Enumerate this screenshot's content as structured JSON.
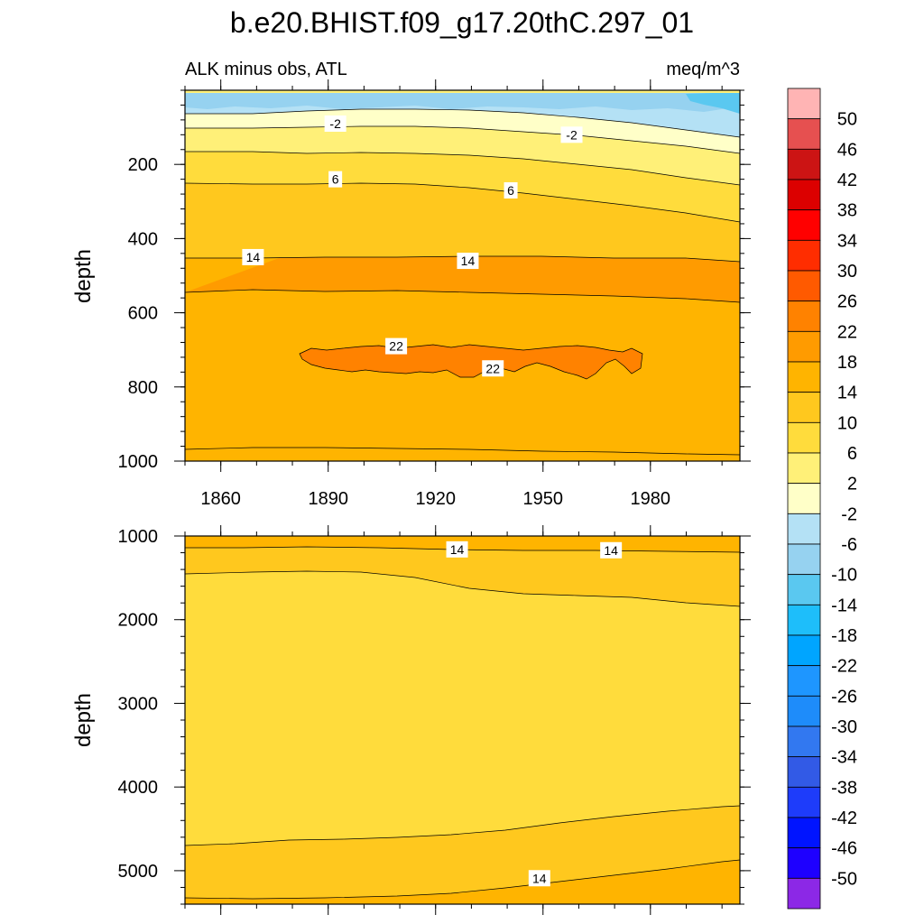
{
  "title": "b.e20.BHIST.f09_g17.20thC.297_01",
  "chart_data": {
    "type": "contour",
    "variable": "ALK minus obs, ATL",
    "units": "meq/m^3",
    "x_tick_labels": [
      "1860",
      "1890",
      "1920",
      "1950",
      "1980"
    ],
    "x_ticks": [
      1860,
      1890,
      1920,
      1950,
      1980
    ],
    "xlim": [
      1850,
      2005
    ],
    "colorbar": {
      "levels": [
        50,
        46,
        42,
        38,
        34,
        30,
        26,
        22,
        18,
        14,
        10,
        6,
        2,
        -2,
        -6,
        -10,
        -14,
        -18,
        -22,
        -26,
        -30,
        -34,
        -38,
        -42,
        -46,
        -50
      ],
      "level_labels": [
        "50",
        "46",
        "42",
        "38",
        "34",
        "30",
        "26",
        "22",
        "18",
        "14",
        "10",
        "6",
        "2",
        "-2",
        "-6",
        "-10",
        "-14",
        "-18",
        "-22",
        "-26",
        "-30",
        "-34",
        "-38",
        "-42",
        "-46",
        "-50"
      ],
      "colors": [
        "#FFB4B4",
        "#E65050",
        "#CC1414",
        "#DC0000",
        "#FF0000",
        "#FF2D00",
        "#FF5A00",
        "#FF8200",
        "#FF9B00",
        "#FFB400",
        "#FFC81E",
        "#FFDC3C",
        "#FFF078",
        "#FFFFC8",
        "#B4E1F5",
        "#96D2F0",
        "#5AC8F0",
        "#1EBEFA",
        "#00A5FF",
        "#1E96FF",
        "#1E8CFA",
        "#3278F0",
        "#325AE6",
        "#1E3CFA",
        "#0014FF",
        "#1E00FF",
        "#8C28E6"
      ]
    },
    "panels": [
      {
        "name": "upper",
        "ylabel": "depth",
        "ylim": [
          0,
          1000
        ],
        "y_ticks": [
          200,
          400,
          600,
          800,
          1000
        ],
        "y_tick_labels": [
          "200",
          "400",
          "600",
          "800",
          "1000"
        ],
        "bands": [
          {
            "range": "-6 to -2",
            "depth_top": 0,
            "depth_bottom": 90
          },
          {
            "range": "-2 to 2",
            "depth_top": 90,
            "depth_bottom": 160
          },
          {
            "range": "2 to 6",
            "depth_top": 160,
            "depth_bottom": 240
          },
          {
            "range": "6 to 10",
            "depth_top": 240,
            "depth_bottom": 330
          },
          {
            "range": "10 to 14",
            "depth_top": 330,
            "depth_bottom": 450
          },
          {
            "range": "14 to 18",
            "depth_top": 450,
            "depth_bottom": 540
          },
          {
            "range": "18 to 22",
            "depth_top": 540,
            "depth_bottom": 1000
          },
          {
            "range": "22 to 26",
            "depth_top": 680,
            "depth_bottom": 760
          }
        ],
        "contour_labels": [
          {
            "text": "-2",
            "year": 1892,
            "depth": 90
          },
          {
            "text": "-2",
            "year": 1958,
            "depth": 120
          },
          {
            "text": "6",
            "year": 1892,
            "depth": 240
          },
          {
            "text": "6",
            "year": 1941,
            "depth": 270
          },
          {
            "text": "14",
            "year": 1869,
            "depth": 450
          },
          {
            "text": "14",
            "year": 1929,
            "depth": 460
          },
          {
            "text": "22",
            "year": 1909,
            "depth": 690
          },
          {
            "text": "22",
            "year": 1936,
            "depth": 750
          }
        ]
      },
      {
        "name": "lower",
        "ylabel": "depth",
        "ylim": [
          1000,
          5400
        ],
        "y_ticks": [
          1000,
          2000,
          3000,
          4000,
          5000
        ],
        "y_tick_labels": [
          "1000",
          "2000",
          "3000",
          "4000",
          "5000"
        ],
        "bands": [
          {
            "range": "14 to 18",
            "depth_top": 1000,
            "depth_bottom": 1150
          },
          {
            "range": "10 to 14",
            "depth_top": 1150,
            "depth_bottom": 1700
          },
          {
            "range": "6 to 10",
            "depth_top": 1700,
            "depth_bottom": 4500
          },
          {
            "range": "10 to 14",
            "depth_top": 4500,
            "depth_bottom": 5200
          },
          {
            "range": "14 to 18",
            "depth_top": 5200,
            "depth_bottom": 5400
          }
        ],
        "contour_labels": [
          {
            "text": "14",
            "year": 1926,
            "depth": 1160
          },
          {
            "text": "14",
            "year": 1969,
            "depth": 1170
          },
          {
            "text": "14",
            "year": 1949,
            "depth": 5090
          }
        ]
      }
    ]
  }
}
